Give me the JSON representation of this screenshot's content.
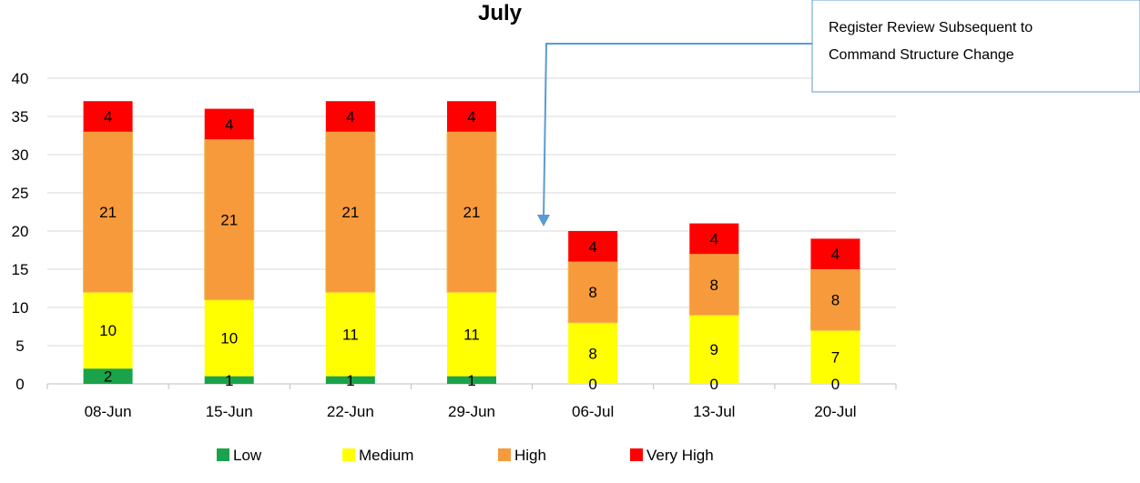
{
  "chart_data": {
    "type": "bar",
    "stacked": true,
    "title": "July",
    "xlabel": "",
    "ylabel": "",
    "ylim": [
      0,
      40
    ],
    "yticks": [
      0,
      5,
      10,
      15,
      20,
      25,
      30,
      35,
      40
    ],
    "grid": true,
    "legend_position": "bottom",
    "categories": [
      "08-Jun",
      "15-Jun",
      "22-Jun",
      "29-Jun",
      "06-Jul",
      "13-Jul",
      "20-Jul"
    ],
    "series": [
      {
        "name": "Low",
        "color": "#1aa34a",
        "values": [
          2,
          1,
          1,
          1,
          0,
          0,
          0
        ]
      },
      {
        "name": "Medium",
        "color": "#ffff00",
        "values": [
          10,
          10,
          11,
          11,
          8,
          9,
          7
        ]
      },
      {
        "name": "High",
        "color": "#f79a3b",
        "values": [
          21,
          21,
          21,
          21,
          8,
          8,
          8
        ]
      },
      {
        "name": "Very High",
        "color": "#ff0000",
        "values": [
          4,
          4,
          4,
          4,
          4,
          4,
          4
        ]
      }
    ],
    "annotation": {
      "lines": [
        "Register Review Subsequent to",
        "Command Structure Change"
      ],
      "arrow_color": "#5b9bd5",
      "points_to": "06-Jul"
    }
  }
}
